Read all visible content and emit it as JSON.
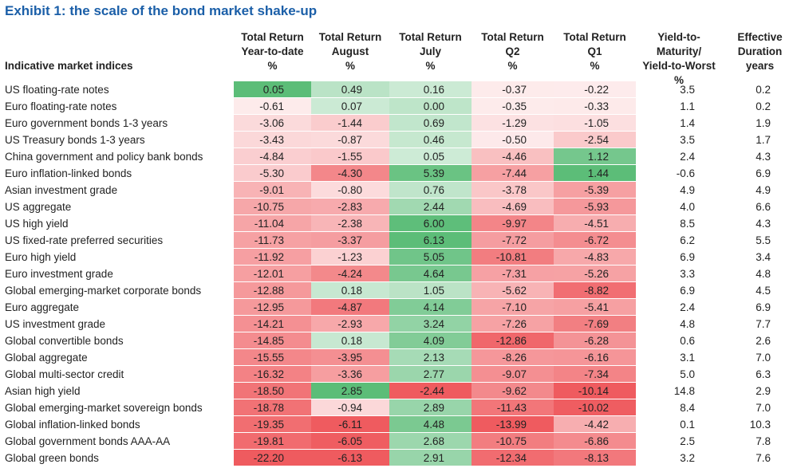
{
  "title": "Exhibit 1: the scale of the bond market shake-up",
  "table": {
    "index_header": "Indicative market indices",
    "columns": [
      [
        "Total Return",
        "Year-to-date",
        "%"
      ],
      [
        "Total Return",
        "August",
        "%"
      ],
      [
        "Total Return",
        "July",
        "%"
      ],
      [
        "Total Return",
        "Q2",
        "%"
      ],
      [
        "Total Return",
        "Q1",
        "%"
      ],
      [
        "Yield-to-Maturity/",
        "Yield-to-Worst",
        "%"
      ],
      [
        "Effective",
        "Duration",
        "years"
      ]
    ],
    "rows": [
      [
        "US floating-rate notes",
        "0.05",
        "0.49",
        "0.16",
        "-0.37",
        "-0.22",
        "3.5",
        "0.2"
      ],
      [
        "Euro floating-rate notes",
        "-0.61",
        "0.07",
        "0.00",
        "-0.35",
        "-0.33",
        "1.1",
        "0.2"
      ],
      [
        "Euro government bonds 1-3 years",
        "-3.06",
        "-1.44",
        "0.69",
        "-1.29",
        "-1.05",
        "1.4",
        "1.9"
      ],
      [
        "US Treasury bonds 1-3 years",
        "-3.43",
        "-0.87",
        "0.46",
        "-0.50",
        "-2.54",
        "3.5",
        "1.7"
      ],
      [
        "China government and policy bank bonds",
        "-4.84",
        "-1.55",
        "0.05",
        "-4.46",
        "1.12",
        "2.4",
        "4.3"
      ],
      [
        "Euro inflation-linked bonds",
        "-5.30",
        "-4.30",
        "5.39",
        "-7.44",
        "1.44",
        "-0.6",
        "6.9"
      ],
      [
        "Asian investment grade",
        "-9.01",
        "-0.80",
        "0.76",
        "-3.78",
        "-5.39",
        "4.9",
        "4.9"
      ],
      [
        "US aggregate",
        "-10.75",
        "-2.83",
        "2.44",
        "-4.69",
        "-5.93",
        "4.0",
        "6.6"
      ],
      [
        "US high yield",
        "-11.04",
        "-2.38",
        "6.00",
        "-9.97",
        "-4.51",
        "8.5",
        "4.3"
      ],
      [
        "US fixed-rate preferred securities",
        "-11.73",
        "-3.37",
        "6.13",
        "-7.72",
        "-6.72",
        "6.2",
        "5.5"
      ],
      [
        "Euro high yield",
        "-11.92",
        "-1.23",
        "5.05",
        "-10.81",
        "-4.83",
        "6.9",
        "3.4"
      ],
      [
        "Euro investment grade",
        "-12.01",
        "-4.24",
        "4.64",
        "-7.31",
        "-5.26",
        "3.3",
        "4.8"
      ],
      [
        "Global emerging-market corporate bonds",
        "-12.88",
        "0.18",
        "1.05",
        "-5.62",
        "-8.82",
        "6.9",
        "4.5"
      ],
      [
        "Euro aggregate",
        "-12.95",
        "-4.87",
        "4.14",
        "-7.10",
        "-5.41",
        "2.4",
        "6.9"
      ],
      [
        "US investment grade",
        "-14.21",
        "-2.93",
        "3.24",
        "-7.26",
        "-7.69",
        "4.8",
        "7.7"
      ],
      [
        "Global convertible bonds",
        "-14.85",
        "0.18",
        "4.09",
        "-12.86",
        "-6.28",
        "0.6",
        "2.6"
      ],
      [
        "Global aggregate",
        "-15.55",
        "-3.95",
        "2.13",
        "-8.26",
        "-6.16",
        "3.1",
        "7.0"
      ],
      [
        "Global multi-sector credit",
        "-16.32",
        "-3.36",
        "2.77",
        "-9.07",
        "-7.34",
        "5.0",
        "6.3"
      ],
      [
        "Asian high yield",
        "-18.50",
        "2.85",
        "-2.44",
        "-9.62",
        "-10.14",
        "14.8",
        "2.9"
      ],
      [
        "Global emerging-market sovereign bonds",
        "-18.78",
        "-0.94",
        "2.89",
        "-11.43",
        "-10.02",
        "8.4",
        "7.0"
      ],
      [
        "Global inflation-linked bonds",
        "-19.35",
        "-6.11",
        "4.48",
        "-13.99",
        "-4.42",
        "0.1",
        "10.3"
      ],
      [
        "Global government bonds AAA-AA",
        "-19.81",
        "-6.05",
        "2.68",
        "-10.75",
        "-6.86",
        "2.5",
        "7.8"
      ],
      [
        "Global green bonds",
        "-22.20",
        "-6.13",
        "2.91",
        "-12.34",
        "-8.13",
        "3.2",
        "7.6"
      ]
    ],
    "heatmap_columns": 5,
    "negative_color": "#ef5b5f",
    "positive_color": "#5cbd78"
  }
}
